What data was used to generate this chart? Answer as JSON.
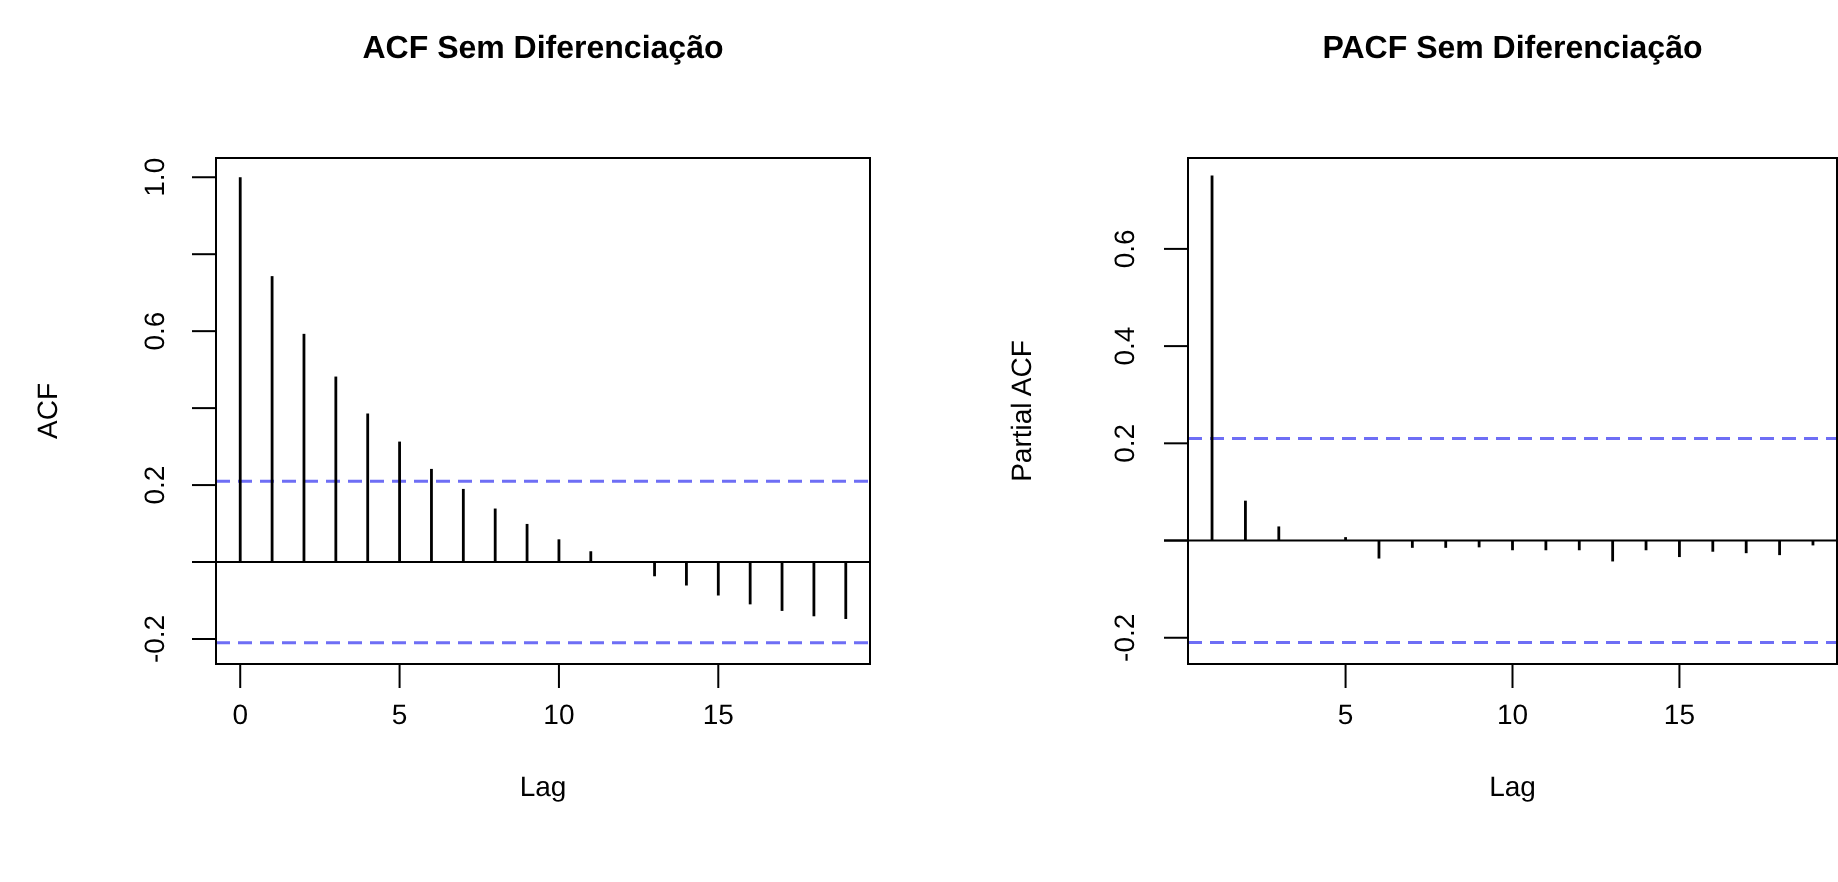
{
  "chart_data": [
    {
      "type": "bar",
      "title": "ACF Sem Diferenciação",
      "xlabel": "Lag",
      "ylabel": "ACF",
      "color": "#000000",
      "x": [
        0,
        1,
        2,
        3,
        4,
        5,
        6,
        7,
        8,
        9,
        10,
        11,
        12,
        13,
        14,
        15,
        16,
        17,
        18,
        19
      ],
      "values": [
        1.0,
        0.743,
        0.593,
        0.482,
        0.386,
        0.313,
        0.242,
        0.19,
        0.139,
        0.099,
        0.059,
        0.028,
        0.0,
        -0.037,
        -0.061,
        -0.087,
        -0.11,
        -0.127,
        -0.141,
        -0.148
      ],
      "xlim": [
        -0.76,
        19.76
      ],
      "xticks": [
        0,
        5,
        10,
        15
      ],
      "ylim": [
        -0.265,
        1.05
      ],
      "yticks": [
        -0.2,
        {
          "value": 0,
          "label": null
        },
        0.2,
        {
          "value": 0.4,
          "label": null
        },
        0.6,
        {
          "value": 0.8,
          "label": null
        },
        {
          "value": 1,
          "label": "1.0"
        }
      ],
      "ref_lines": [
        {
          "axis": "y",
          "value": 0,
          "color": "#000000",
          "line_style": "solid"
        },
        {
          "axis": "y",
          "value": 0.21,
          "color": "#6e6ef5",
          "line_style": "dashed"
        },
        {
          "axis": "y",
          "value": -0.21,
          "color": "#6e6ef5",
          "line_style": "dashed"
        }
      ]
    },
    {
      "type": "bar",
      "title": "PACF Sem Diferenciação",
      "xlabel": "Lag",
      "ylabel": "Partial ACF",
      "color": "#000000",
      "x": [
        1,
        2,
        3,
        4,
        5,
        6,
        7,
        8,
        9,
        10,
        11,
        12,
        13,
        14,
        15,
        16,
        17,
        18,
        19
      ],
      "values": [
        0.751,
        0.082,
        0.029,
        0.0,
        0.007,
        -0.037,
        -0.015,
        -0.015,
        -0.014,
        -0.02,
        -0.02,
        -0.02,
        -0.043,
        -0.02,
        -0.034,
        -0.023,
        -0.026,
        -0.03,
        -0.01
      ],
      "xlim": [
        0.28,
        19.72
      ],
      "xticks": [
        5,
        10,
        15
      ],
      "ylim": [
        -0.254,
        0.787
      ],
      "yticks": [
        -0.2,
        {
          "value": 0,
          "label": null
        },
        0.2,
        0.4,
        0.6
      ],
      "ref_lines": [
        {
          "axis": "y",
          "value": 0,
          "color": "#000000",
          "line_style": "solid"
        },
        {
          "axis": "y",
          "value": 0.21,
          "color": "#6e6ef5",
          "line_style": "dashed"
        },
        {
          "axis": "y",
          "value": -0.21,
          "color": "#6e6ef5",
          "line_style": "dashed"
        }
      ]
    }
  ]
}
